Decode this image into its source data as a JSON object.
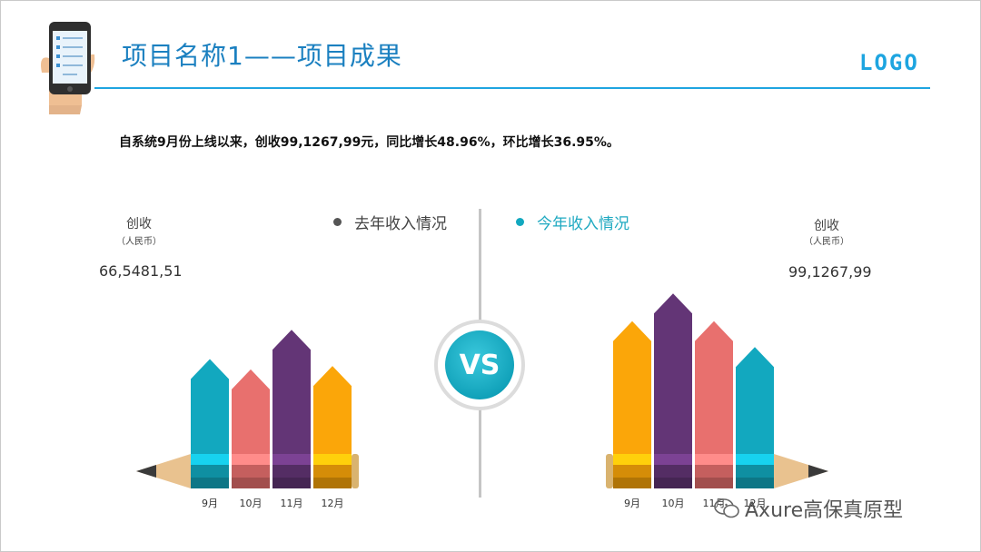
{
  "header": {
    "title": "项目名称1——项目成果",
    "logo": "LOGO"
  },
  "summary": "自系统9月份上线以来，创收99,1267,99元，同比增长48.96%，环比增长36.95%。",
  "left_panel": {
    "legend": "去年收入情况",
    "metric_label": "创收",
    "metric_unit": "（人民币）",
    "metric_value": "66,5481,51"
  },
  "right_panel": {
    "legend": "今年收入情况",
    "metric_label": "创收",
    "metric_unit": "（人民币）",
    "metric_value": "99,1267,99"
  },
  "vs_label": "VS",
  "watermark": "Axure高保真原型",
  "colors": {
    "accent": "#1b80c0",
    "teal": "#12a8bf",
    "salmon": "#e8706e",
    "purple": "#633576",
    "orange": "#fba609",
    "gray_legend": "#555555"
  },
  "chart_data": [
    {
      "type": "bar",
      "series": [
        {
          "name": "去年收入情况",
          "values": [
            55,
            49,
            72,
            51
          ]
        }
      ],
      "categories": [
        "9月",
        "10月",
        "11月",
        "12月"
      ],
      "colors": [
        "#12a8bf",
        "#e8706e",
        "#633576",
        "#fba609"
      ],
      "ylim": [
        0,
        100
      ],
      "grid": false
    },
    {
      "type": "bar",
      "series": [
        {
          "name": "今年收入情况",
          "values": [
            77,
            93,
            77,
            62
          ]
        }
      ],
      "categories": [
        "9月",
        "10月",
        "11月",
        "12月"
      ],
      "colors": [
        "#fba609",
        "#633576",
        "#e8706e",
        "#12a8bf"
      ],
      "ylim": [
        0,
        100
      ],
      "grid": false
    }
  ]
}
